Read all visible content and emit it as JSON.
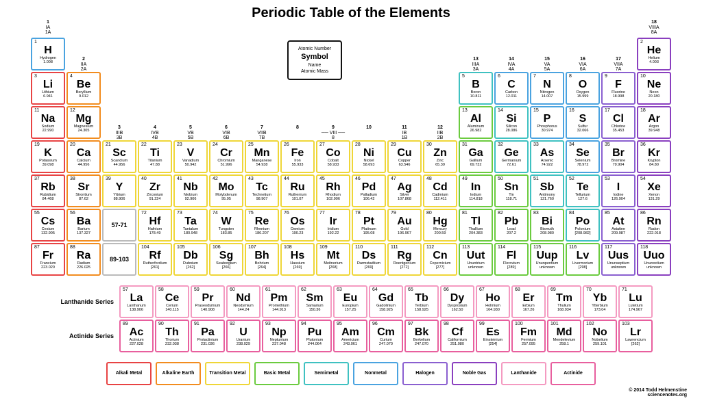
{
  "title": "Periodic Table of the Elements",
  "key": {
    "num": "Atomic Number",
    "sym": "Symbol",
    "name": "Name",
    "mass": "Atomic  Mass"
  },
  "groups": [
    {
      "col": 1,
      "n": "1",
      "r": "IA\n1A"
    },
    {
      "col": 2,
      "n": "2",
      "r": "IIA\n2A"
    },
    {
      "col": 3,
      "n": "3",
      "r": "IIIB\n3B"
    },
    {
      "col": 4,
      "n": "4",
      "r": "IVB\n4B"
    },
    {
      "col": 5,
      "n": "5",
      "r": "VB\n5B"
    },
    {
      "col": 6,
      "n": "6",
      "r": "VIB\n6B"
    },
    {
      "col": 7,
      "n": "7",
      "r": "VIIB\n7B"
    },
    {
      "col": 8,
      "n": "8",
      "r": ""
    },
    {
      "col": 9,
      "n": "9",
      "r": "── VIII ──\n8"
    },
    {
      "col": 10,
      "n": "10",
      "r": ""
    },
    {
      "col": 11,
      "n": "11",
      "r": "IB\n1B"
    },
    {
      "col": 12,
      "n": "12",
      "r": "IIB\n2B"
    },
    {
      "col": 13,
      "n": "13",
      "r": "IIIA\n3A"
    },
    {
      "col": 14,
      "n": "14",
      "r": "IVA\n4A"
    },
    {
      "col": 15,
      "n": "15",
      "r": "VA\n5A"
    },
    {
      "col": 16,
      "n": "16",
      "r": "VIA\n6A"
    },
    {
      "col": 17,
      "n": "17",
      "r": "VIIA\n7A"
    },
    {
      "col": 18,
      "n": "18",
      "r": "VIIIA\n8A"
    }
  ],
  "categories": {
    "alkali": {
      "label": "Alkali Metal",
      "color": "#e84343"
    },
    "alkaline": {
      "label": "Alkaline Earth",
      "color": "#f28c1e"
    },
    "transition": {
      "label": "Transition Metal",
      "color": "#efd637"
    },
    "basic": {
      "label": "Basic Metal",
      "color": "#6bcb3f"
    },
    "semimetal": {
      "label": "Semimetal",
      "color": "#3fc1c1"
    },
    "nonmetal": {
      "label": "Nonmetal",
      "color": "#4aa3e0"
    },
    "halogen": {
      "label": "Halogen",
      "color": "#8a5fd0"
    },
    "noble": {
      "label": "Noble Gas",
      "color": "#8a3fbf"
    },
    "lanthanide": {
      "label": "Lanthanide",
      "color": "#f49ac1"
    },
    "actinide": {
      "label": "Actinide",
      "color": "#e85f9e"
    }
  },
  "legend_order": [
    "alkali",
    "alkaline",
    "transition",
    "basic",
    "semimetal",
    "nonmetal",
    "halogen",
    "noble",
    "lanthanide",
    "actinide"
  ],
  "series_labels": {
    "lan": "Lanthanide Series",
    "act": "Actinide Series"
  },
  "placeholders": {
    "lan": "57-71",
    "act": "89-103"
  },
  "elements": [
    {
      "z": 1,
      "s": "H",
      "n": "Hydrogen",
      "m": "1.008",
      "c": "nonmetal",
      "row": 1,
      "col": 1
    },
    {
      "z": 2,
      "s": "He",
      "n": "Helium",
      "m": "4.003",
      "c": "noble",
      "row": 1,
      "col": 18
    },
    {
      "z": 3,
      "s": "Li",
      "n": "Lithium",
      "m": "6.941",
      "c": "alkali",
      "row": 2,
      "col": 1
    },
    {
      "z": 4,
      "s": "Be",
      "n": "Beryllium",
      "m": "9.012",
      "c": "alkaline",
      "row": 2,
      "col": 2
    },
    {
      "z": 5,
      "s": "B",
      "n": "Boron",
      "m": "10.811",
      "c": "semimetal",
      "row": 2,
      "col": 13
    },
    {
      "z": 6,
      "s": "C",
      "n": "Carbon",
      "m": "12.011",
      "c": "nonmetal",
      "row": 2,
      "col": 14
    },
    {
      "z": 7,
      "s": "N",
      "n": "Nitrogen",
      "m": "14.007",
      "c": "nonmetal",
      "row": 2,
      "col": 15
    },
    {
      "z": 8,
      "s": "O",
      "n": "Oxygen",
      "m": "15.999",
      "c": "nonmetal",
      "row": 2,
      "col": 16
    },
    {
      "z": 9,
      "s": "F",
      "n": "Fluorine",
      "m": "18.998",
      "c": "halogen",
      "row": 2,
      "col": 17
    },
    {
      "z": 10,
      "s": "Ne",
      "n": "Neon",
      "m": "20.180",
      "c": "noble",
      "row": 2,
      "col": 18
    },
    {
      "z": 11,
      "s": "Na",
      "n": "Sodium",
      "m": "22.990",
      "c": "alkali",
      "row": 3,
      "col": 1
    },
    {
      "z": 12,
      "s": "Mg",
      "n": "Magnesium",
      "m": "24.305",
      "c": "alkaline",
      "row": 3,
      "col": 2
    },
    {
      "z": 13,
      "s": "Al",
      "n": "Aluminum",
      "m": "26.982",
      "c": "basic",
      "row": 3,
      "col": 13
    },
    {
      "z": 14,
      "s": "Si",
      "n": "Silicon",
      "m": "28.086",
      "c": "semimetal",
      "row": 3,
      "col": 14
    },
    {
      "z": 15,
      "s": "P",
      "n": "Phosphorus",
      "m": "30.974",
      "c": "nonmetal",
      "row": 3,
      "col": 15
    },
    {
      "z": 16,
      "s": "S",
      "n": "Sulfur",
      "m": "32.066",
      "c": "nonmetal",
      "row": 3,
      "col": 16
    },
    {
      "z": 17,
      "s": "Cl",
      "n": "Chlorine",
      "m": "35.453",
      "c": "halogen",
      "row": 3,
      "col": 17
    },
    {
      "z": 18,
      "s": "Ar",
      "n": "Argon",
      "m": "39.948",
      "c": "noble",
      "row": 3,
      "col": 18
    },
    {
      "z": 19,
      "s": "K",
      "n": "Potassium",
      "m": "39.098",
      "c": "alkali",
      "row": 4,
      "col": 1
    },
    {
      "z": 20,
      "s": "Ca",
      "n": "Calcium",
      "m": "44.956",
      "c": "alkaline",
      "row": 4,
      "col": 2
    },
    {
      "z": 21,
      "s": "Sc",
      "n": "Scandium",
      "m": "44.956",
      "c": "transition",
      "row": 4,
      "col": 3
    },
    {
      "z": 22,
      "s": "Ti",
      "n": "Titanium",
      "m": "47.88",
      "c": "transition",
      "row": 4,
      "col": 4
    },
    {
      "z": 23,
      "s": "V",
      "n": "Vanadium",
      "m": "50.942",
      "c": "transition",
      "row": 4,
      "col": 5
    },
    {
      "z": 24,
      "s": "Cr",
      "n": "Chromium",
      "m": "51.996",
      "c": "transition",
      "row": 4,
      "col": 6
    },
    {
      "z": 25,
      "s": "Mn",
      "n": "Manganese",
      "m": "54.938",
      "c": "transition",
      "row": 4,
      "col": 7
    },
    {
      "z": 26,
      "s": "Fe",
      "n": "Iron",
      "m": "55.933",
      "c": "transition",
      "row": 4,
      "col": 8
    },
    {
      "z": 27,
      "s": "Co",
      "n": "Cobalt",
      "m": "58.933",
      "c": "transition",
      "row": 4,
      "col": 9
    },
    {
      "z": 28,
      "s": "Ni",
      "n": "Nickel",
      "m": "58.693",
      "c": "transition",
      "row": 4,
      "col": 10
    },
    {
      "z": 29,
      "s": "Cu",
      "n": "Copper",
      "m": "63.546",
      "c": "transition",
      "row": 4,
      "col": 11
    },
    {
      "z": 30,
      "s": "Zn",
      "n": "Zinc",
      "m": "65.39",
      "c": "transition",
      "row": 4,
      "col": 12
    },
    {
      "z": 31,
      "s": "Ga",
      "n": "Gallium",
      "m": "69.732",
      "c": "basic",
      "row": 4,
      "col": 13
    },
    {
      "z": 32,
      "s": "Ge",
      "n": "Germanium",
      "m": "72.61",
      "c": "semimetal",
      "row": 4,
      "col": 14
    },
    {
      "z": 33,
      "s": "As",
      "n": "Arsenic",
      "m": "74.922",
      "c": "semimetal",
      "row": 4,
      "col": 15
    },
    {
      "z": 34,
      "s": "Se",
      "n": "Selenium",
      "m": "78.972",
      "c": "nonmetal",
      "row": 4,
      "col": 16
    },
    {
      "z": 35,
      "s": "Br",
      "n": "Bromine",
      "m": "79.904",
      "c": "halogen",
      "row": 4,
      "col": 17
    },
    {
      "z": 36,
      "s": "Kr",
      "n": "Krypton",
      "m": "84.80",
      "c": "noble",
      "row": 4,
      "col": 18
    },
    {
      "z": 37,
      "s": "Rb",
      "n": "Rubidium",
      "m": "84.468",
      "c": "alkali",
      "row": 5,
      "col": 1
    },
    {
      "z": 38,
      "s": "Sr",
      "n": "Strontium",
      "m": "87.62",
      "c": "alkaline",
      "row": 5,
      "col": 2
    },
    {
      "z": 39,
      "s": "Y",
      "n": "Yttrium",
      "m": "88.906",
      "c": "transition",
      "row": 5,
      "col": 3
    },
    {
      "z": 40,
      "s": "Zr",
      "n": "Zirconium",
      "m": "91.224",
      "c": "transition",
      "row": 5,
      "col": 4
    },
    {
      "z": 41,
      "s": "Nb",
      "n": "Niobium",
      "m": "92.906",
      "c": "transition",
      "row": 5,
      "col": 5
    },
    {
      "z": 42,
      "s": "Mo",
      "n": "Molybdenum",
      "m": "95.95",
      "c": "transition",
      "row": 5,
      "col": 6
    },
    {
      "z": 43,
      "s": "Tc",
      "n": "Technetium",
      "m": "98.907",
      "c": "transition",
      "row": 5,
      "col": 7
    },
    {
      "z": 44,
      "s": "Ru",
      "n": "Ruthenium",
      "m": "101.07",
      "c": "transition",
      "row": 5,
      "col": 8
    },
    {
      "z": 45,
      "s": "Rh",
      "n": "Rhodium",
      "m": "102.906",
      "c": "transition",
      "row": 5,
      "col": 9
    },
    {
      "z": 46,
      "s": "Pd",
      "n": "Palladium",
      "m": "106.42",
      "c": "transition",
      "row": 5,
      "col": 10
    },
    {
      "z": 47,
      "s": "Ag",
      "n": "Silver",
      "m": "107.868",
      "c": "transition",
      "row": 5,
      "col": 11
    },
    {
      "z": 48,
      "s": "Cd",
      "n": "Cadmium",
      "m": "112.411",
      "c": "transition",
      "row": 5,
      "col": 12
    },
    {
      "z": 49,
      "s": "In",
      "n": "Indium",
      "m": "114.818",
      "c": "basic",
      "row": 5,
      "col": 13
    },
    {
      "z": 50,
      "s": "Sn",
      "n": "Tin",
      "m": "118.71",
      "c": "basic",
      "row": 5,
      "col": 14
    },
    {
      "z": 51,
      "s": "Sb",
      "n": "Antimony",
      "m": "121.760",
      "c": "semimetal",
      "row": 5,
      "col": 15
    },
    {
      "z": 52,
      "s": "Te",
      "n": "Tellurium",
      "m": "127.6",
      "c": "semimetal",
      "row": 5,
      "col": 16
    },
    {
      "z": 53,
      "s": "I",
      "n": "Iodine",
      "m": "126.904",
      "c": "halogen",
      "row": 5,
      "col": 17
    },
    {
      "z": 54,
      "s": "Xe",
      "n": "Xenon",
      "m": "131.29",
      "c": "noble",
      "row": 5,
      "col": 18
    },
    {
      "z": 55,
      "s": "Cs",
      "n": "Cesium",
      "m": "132.905",
      "c": "alkali",
      "row": 6,
      "col": 1
    },
    {
      "z": 56,
      "s": "Ba",
      "n": "Barium",
      "m": "137.327",
      "c": "alkaline",
      "row": 6,
      "col": 2
    },
    {
      "z": 72,
      "s": "Hf",
      "n": "Hafnium",
      "m": "178.49",
      "c": "transition",
      "row": 6,
      "col": 4
    },
    {
      "z": 73,
      "s": "Ta",
      "n": "Tantalum",
      "m": "180.948",
      "c": "transition",
      "row": 6,
      "col": 5
    },
    {
      "z": 74,
      "s": "W",
      "n": "Tungsten",
      "m": "183.85",
      "c": "transition",
      "row": 6,
      "col": 6
    },
    {
      "z": 75,
      "s": "Re",
      "n": "Rhenium",
      "m": "186.207",
      "c": "transition",
      "row": 6,
      "col": 7
    },
    {
      "z": 76,
      "s": "Os",
      "n": "Osmium",
      "m": "190.23",
      "c": "transition",
      "row": 6,
      "col": 8
    },
    {
      "z": 77,
      "s": "Ir",
      "n": "Iridium",
      "m": "192.22",
      "c": "transition",
      "row": 6,
      "col": 9
    },
    {
      "z": 78,
      "s": "Pt",
      "n": "Platinum",
      "m": "195.08",
      "c": "transition",
      "row": 6,
      "col": 10
    },
    {
      "z": 79,
      "s": "Au",
      "n": "Gold",
      "m": "196.967",
      "c": "transition",
      "row": 6,
      "col": 11
    },
    {
      "z": 80,
      "s": "Hg",
      "n": "Mercury",
      "m": "200.59",
      "c": "transition",
      "row": 6,
      "col": 12
    },
    {
      "z": 81,
      "s": "Tl",
      "n": "Thallium",
      "m": "204.383",
      "c": "basic",
      "row": 6,
      "col": 13
    },
    {
      "z": 82,
      "s": "Pb",
      "n": "Lead",
      "m": "207.2",
      "c": "basic",
      "row": 6,
      "col": 14
    },
    {
      "z": 83,
      "s": "Bi",
      "n": "Bismuth",
      "m": "208.980",
      "c": "basic",
      "row": 6,
      "col": 15
    },
    {
      "z": 84,
      "s": "Po",
      "n": "Polonium",
      "m": "[208.982]",
      "c": "semimetal",
      "row": 6,
      "col": 16
    },
    {
      "z": 85,
      "s": "At",
      "n": "Astatine",
      "m": "209.987",
      "c": "halogen",
      "row": 6,
      "col": 17
    },
    {
      "z": 86,
      "s": "Rn",
      "n": "Radon",
      "m": "222.018",
      "c": "noble",
      "row": 6,
      "col": 18
    },
    {
      "z": 87,
      "s": "Fr",
      "n": "Francium",
      "m": "223.020",
      "c": "alkali",
      "row": 7,
      "col": 1
    },
    {
      "z": 88,
      "s": "Ra",
      "n": "Radium",
      "m": "226.025",
      "c": "alkaline",
      "row": 7,
      "col": 2
    },
    {
      "z": 104,
      "s": "Rf",
      "n": "Rutherfordium",
      "m": "[261]",
      "c": "transition",
      "row": 7,
      "col": 4
    },
    {
      "z": 105,
      "s": "Db",
      "n": "Dubnium",
      "m": "[262]",
      "c": "transition",
      "row": 7,
      "col": 5
    },
    {
      "z": 106,
      "s": "Sg",
      "n": "Seaborgium",
      "m": "[266]",
      "c": "transition",
      "row": 7,
      "col": 6
    },
    {
      "z": 107,
      "s": "Bh",
      "n": "Bohrium",
      "m": "[264]",
      "c": "transition",
      "row": 7,
      "col": 7
    },
    {
      "z": 108,
      "s": "Hs",
      "n": "Hassium",
      "m": "[269]",
      "c": "transition",
      "row": 7,
      "col": 8
    },
    {
      "z": 109,
      "s": "Mt",
      "n": "Meitnerium",
      "m": "[268]",
      "c": "transition",
      "row": 7,
      "col": 9
    },
    {
      "z": 110,
      "s": "Ds",
      "n": "Darmstadtium",
      "m": "[269]",
      "c": "transition",
      "row": 7,
      "col": 10
    },
    {
      "z": 111,
      "s": "Rg",
      "n": "Roentgenium",
      "m": "[272]",
      "c": "transition",
      "row": 7,
      "col": 11
    },
    {
      "z": 112,
      "s": "Cn",
      "n": "Copernicium",
      "m": "[277]",
      "c": "transition",
      "row": 7,
      "col": 12
    },
    {
      "z": 113,
      "s": "Uut",
      "n": "Ununtrium",
      "m": "unknown",
      "c": "basic",
      "row": 7,
      "col": 13
    },
    {
      "z": 114,
      "s": "Fl",
      "n": "Flerovium",
      "m": "[289]",
      "c": "basic",
      "row": 7,
      "col": 14
    },
    {
      "z": 115,
      "s": "Uup",
      "n": "Ununpentium",
      "m": "unknown",
      "c": "basic",
      "row": 7,
      "col": 15
    },
    {
      "z": 116,
      "s": "Lv",
      "n": "Livermorium",
      "m": "[298]",
      "c": "basic",
      "row": 7,
      "col": 16
    },
    {
      "z": 117,
      "s": "Uus",
      "n": "Ununseptium",
      "m": "unknown",
      "c": "halogen",
      "row": 7,
      "col": 17
    },
    {
      "z": 118,
      "s": "Uuo",
      "n": "Ununoctium",
      "m": "unknown",
      "c": "noble",
      "row": 7,
      "col": 18
    }
  ],
  "lanthanides": [
    {
      "z": 57,
      "s": "La",
      "n": "Lanthanum",
      "m": "138.906"
    },
    {
      "z": 58,
      "s": "Ce",
      "n": "Cerium",
      "m": "140.115"
    },
    {
      "z": 59,
      "s": "Pr",
      "n": "Praseodymium",
      "m": "140.908"
    },
    {
      "z": 60,
      "s": "Nd",
      "n": "Neodymium",
      "m": "144.24"
    },
    {
      "z": 61,
      "s": "Pm",
      "n": "Promethium",
      "m": "144.913"
    },
    {
      "z": 62,
      "s": "Sm",
      "n": "Samarium",
      "m": "150.36"
    },
    {
      "z": 63,
      "s": "Eu",
      "n": "Europium",
      "m": "157.25"
    },
    {
      "z": 64,
      "s": "Gd",
      "n": "Gadolinium",
      "m": "158.925"
    },
    {
      "z": 65,
      "s": "Tb",
      "n": "Terbium",
      "m": "158.925"
    },
    {
      "z": 66,
      "s": "Dy",
      "n": "Dysprosium",
      "m": "162.50"
    },
    {
      "z": 67,
      "s": "Ho",
      "n": "Holmium",
      "m": "164.930"
    },
    {
      "z": 68,
      "s": "Er",
      "n": "Erbium",
      "m": "167.26"
    },
    {
      "z": 69,
      "s": "Tm",
      "n": "Thulium",
      "m": "168.934"
    },
    {
      "z": 70,
      "s": "Yb",
      "n": "Ytterbium",
      "m": "173.04"
    },
    {
      "z": 71,
      "s": "Lu",
      "n": "Lutetium",
      "m": "174.967"
    }
  ],
  "actinides": [
    {
      "z": 89,
      "s": "Ac",
      "n": "Actinium",
      "m": "227.028"
    },
    {
      "z": 90,
      "s": "Th",
      "n": "Thorium",
      "m": "232.038"
    },
    {
      "z": 91,
      "s": "Pa",
      "n": "Protactinium",
      "m": "231.036"
    },
    {
      "z": 92,
      "s": "U",
      "n": "Uranium",
      "m": "238.029"
    },
    {
      "z": 93,
      "s": "Np",
      "n": "Neptunium",
      "m": "237.048"
    },
    {
      "z": 94,
      "s": "Pu",
      "n": "Plutonium",
      "m": "244.064"
    },
    {
      "z": 95,
      "s": "Am",
      "n": "Americium",
      "m": "243.061"
    },
    {
      "z": 96,
      "s": "Cm",
      "n": "Curium",
      "m": "247.070"
    },
    {
      "z": 97,
      "s": "Bk",
      "n": "Berkelium",
      "m": "247.070"
    },
    {
      "z": 98,
      "s": "Cf",
      "n": "Californium",
      "m": "251.080"
    },
    {
      "z": 99,
      "s": "Es",
      "n": "Einsteinium",
      "m": "[254]"
    },
    {
      "z": 100,
      "s": "Fm",
      "n": "Fermium",
      "m": "257.095"
    },
    {
      "z": 101,
      "s": "Md",
      "n": "Mendelevium",
      "m": "258.1"
    },
    {
      "z": 102,
      "s": "No",
      "n": "Nobelium",
      "m": "259.101"
    },
    {
      "z": 103,
      "s": "Lr",
      "n": "Lawrencium",
      "m": "[262]"
    }
  ],
  "copyright": "© 2014 Todd Helmenstine\nsciencenotes.org"
}
